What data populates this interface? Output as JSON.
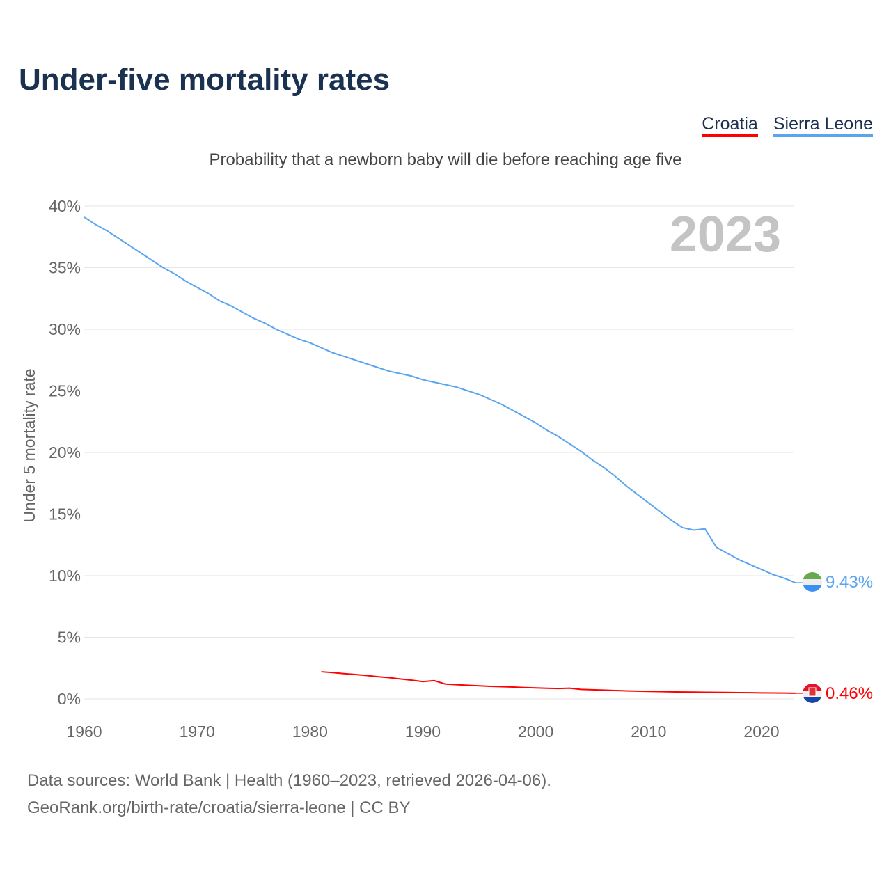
{
  "title": "Under-five mortality rates",
  "legend": [
    {
      "label": "Croatia",
      "color": "#ff0000"
    },
    {
      "label": "Sierra Leone",
      "color": "#5aa5ee"
    }
  ],
  "subtitle": "Probability that a newborn baby will die before reaching age five",
  "footer": {
    "line1": "Data sources: World Bank | Health (1960–2023, retrieved 2026-04-06).",
    "line2": "GeoRank.org/birth-rate/croatia/sierra-leone | CC BY"
  },
  "chart_data": {
    "type": "line",
    "year_label": "2023",
    "ylabel": "Under 5 mortality rate",
    "xlim": [
      1960,
      2023
    ],
    "ylim": [
      0,
      40
    ],
    "xticks": [
      "1960",
      "1970",
      "1980",
      "1990",
      "2000",
      "2010",
      "2020"
    ],
    "yticks": [
      "0%",
      "5%",
      "10%",
      "15%",
      "20%",
      "25%",
      "30%",
      "35%",
      "40%"
    ],
    "series": [
      {
        "name": "Sierra Leone",
        "color": "#5aa5ee",
        "end_label": "9.43%",
        "start": 1960,
        "values": [
          39.1,
          38.5,
          38.0,
          37.4,
          36.8,
          36.2,
          35.6,
          35.0,
          34.5,
          33.9,
          33.4,
          32.9,
          32.3,
          31.9,
          31.4,
          30.9,
          30.5,
          30.0,
          29.6,
          29.2,
          28.9,
          28.5,
          28.1,
          27.8,
          27.5,
          27.2,
          26.9,
          26.6,
          26.4,
          26.2,
          25.9,
          25.7,
          25.5,
          25.3,
          25.0,
          24.7,
          24.3,
          23.9,
          23.4,
          22.9,
          22.4,
          21.8,
          21.3,
          20.7,
          20.1,
          19.4,
          18.8,
          18.1,
          17.3,
          16.6,
          15.9,
          15.2,
          14.5,
          13.9,
          13.7,
          13.8,
          12.3,
          11.8,
          11.3,
          10.9,
          10.5,
          10.1,
          9.8,
          9.43
        ]
      },
      {
        "name": "Croatia",
        "color": "#ff0000",
        "end_label": "0.46%",
        "start": 1981,
        "values": [
          2.2,
          2.13,
          2.05,
          1.98,
          1.9,
          1.8,
          1.72,
          1.62,
          1.52,
          1.4,
          1.48,
          1.2,
          1.15,
          1.1,
          1.06,
          1.02,
          0.99,
          0.96,
          0.92,
          0.89,
          0.86,
          0.84,
          0.87,
          0.77,
          0.74,
          0.71,
          0.68,
          0.65,
          0.63,
          0.61,
          0.59,
          0.57,
          0.56,
          0.55,
          0.54,
          0.53,
          0.52,
          0.51,
          0.5,
          0.49,
          0.48,
          0.47,
          0.46
        ]
      }
    ]
  }
}
